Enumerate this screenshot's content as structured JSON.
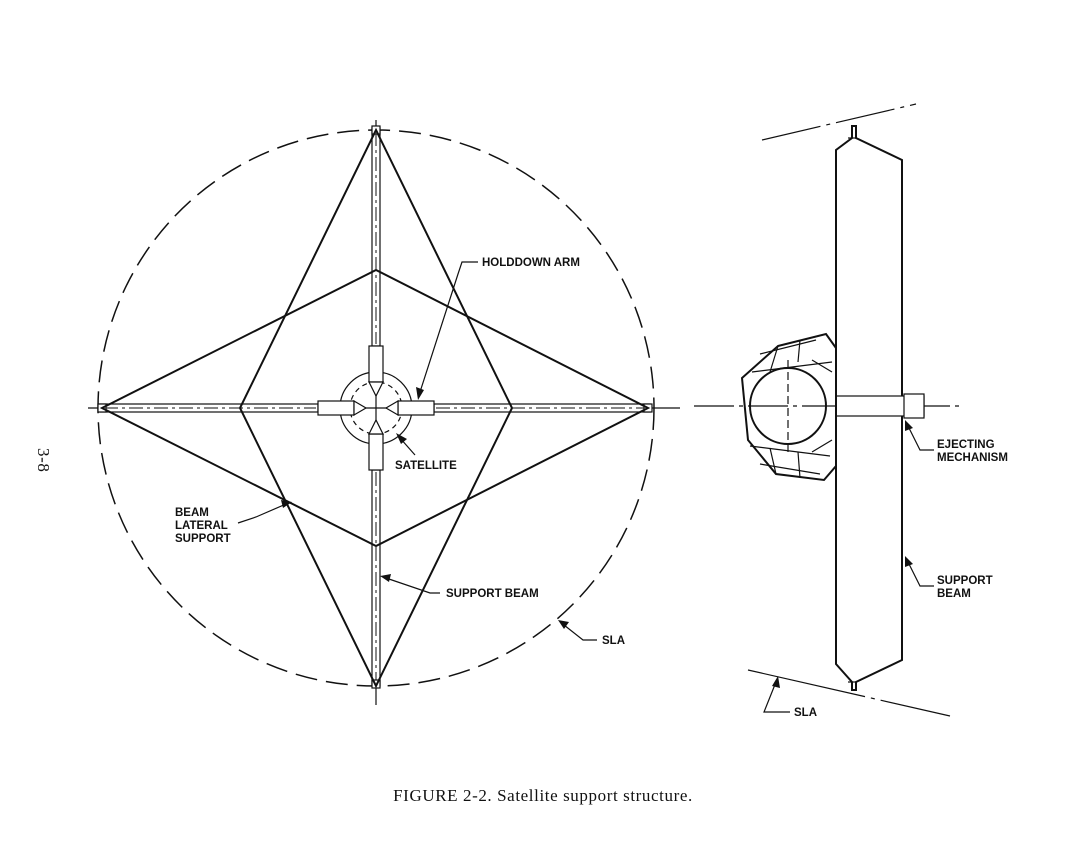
{
  "labels": {
    "holddown_arm": "HOLDDOWN ARM",
    "satellite": "SATELLITE",
    "beam_lateral_support_line1": "BEAM",
    "beam_lateral_support_line2": "LATERAL",
    "beam_lateral_support_line3": "SUPPORT",
    "support_beam_front": "SUPPORT BEAM",
    "sla_front": "SLA",
    "ejecting_mechanism_line1": "EJECTING",
    "ejecting_mechanism_line2": "MECHANISM",
    "support_beam_side_line1": "SUPPORT",
    "support_beam_side_line2": "BEAM",
    "sla_side": "SLA"
  },
  "caption": "FIGURE 2-2.   Satellite support structure.",
  "margin_mark": "3-8"
}
